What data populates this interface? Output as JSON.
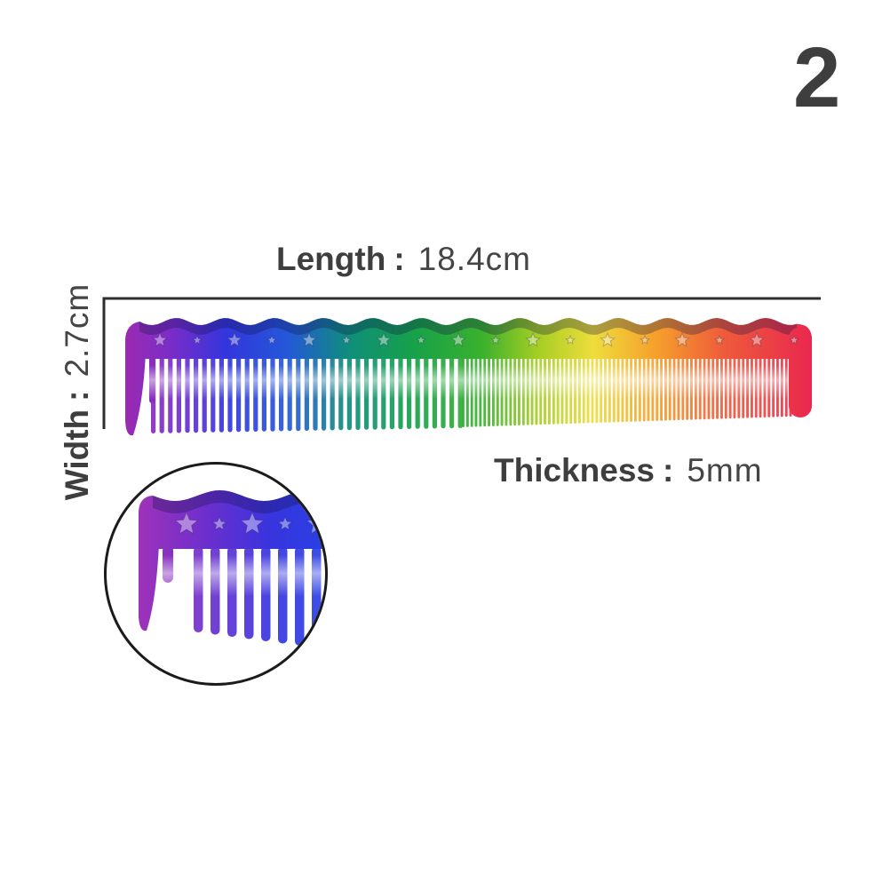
{
  "variant_number": "2",
  "annotations": {
    "length": {
      "label": "Length",
      "colon": ":",
      "value": "18.4cm"
    },
    "width": {
      "label": "Width",
      "colon": ":",
      "value": "2.7cm"
    },
    "thickness": {
      "label": "Thickness",
      "colon": ":",
      "value": "5mm"
    }
  },
  "product": {
    "description": "rainbow gradient barber cutting comb with star decorations",
    "zoom_inset": "close-up of purple-to-blue wide-tooth end"
  },
  "colors": {
    "background": "#ffffff",
    "text": "#3e3e3e",
    "dimension_line": "#2d2d2d",
    "inset_border": "#1b1b1b",
    "rainbow_stops": [
      [
        "0.00",
        "#9d2bb0"
      ],
      [
        "0.07",
        "#7b2cc8"
      ],
      [
        "0.15",
        "#3336dd"
      ],
      [
        "0.24",
        "#2458d8"
      ],
      [
        "0.33",
        "#0f8f78"
      ],
      [
        "0.42",
        "#16a14a"
      ],
      [
        "0.52",
        "#3bb12e"
      ],
      [
        "0.60",
        "#a6ce23"
      ],
      [
        "0.68",
        "#eedd3c"
      ],
      [
        "0.77",
        "#f5a02b"
      ],
      [
        "0.87",
        "#ee5a3b"
      ],
      [
        "1.00",
        "#e92550"
      ]
    ],
    "inset_stops": [
      [
        "0.00",
        "#a132b8"
      ],
      [
        "0.30",
        "#6a2fce"
      ],
      [
        "0.55",
        "#3834de"
      ],
      [
        "0.80",
        "#2742e4"
      ],
      [
        "1.00",
        "#2c50e8"
      ]
    ]
  }
}
